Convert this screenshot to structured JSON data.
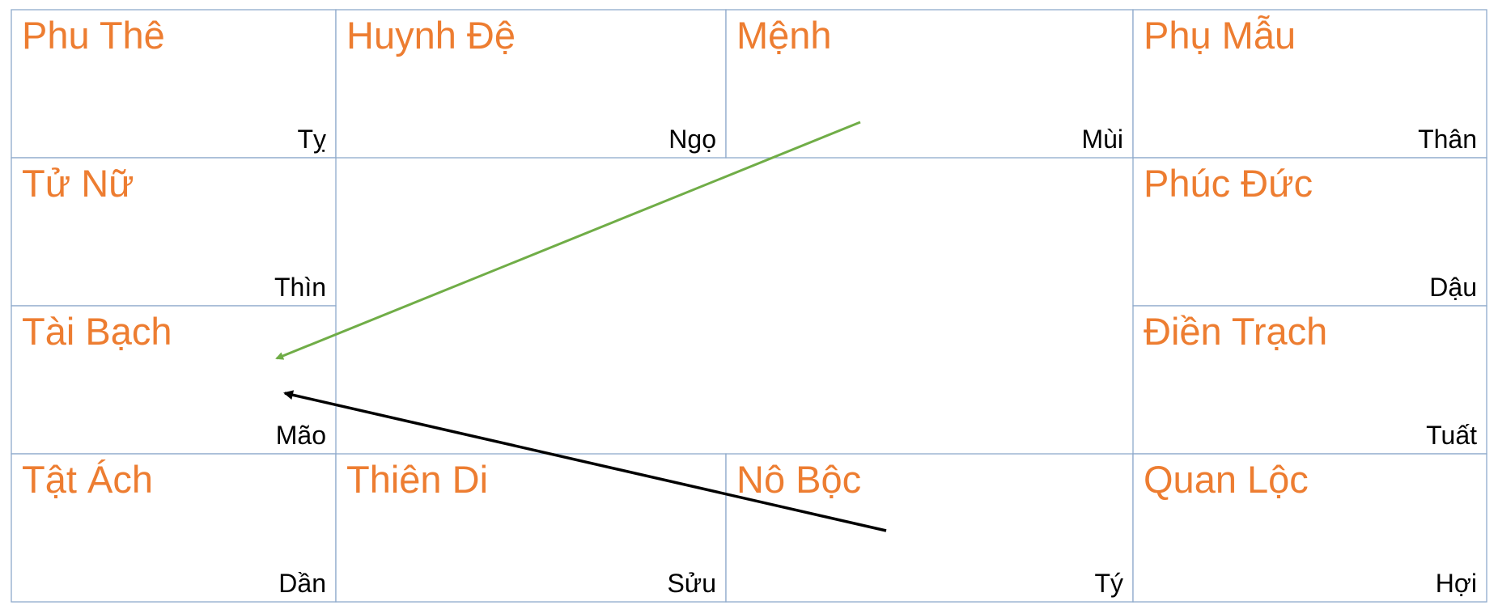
{
  "cells": [
    {
      "name": "Phu Thê",
      "branch": "Tỵ"
    },
    {
      "name": "Huynh Đệ",
      "branch": "Ngọ"
    },
    {
      "name": "Mệnh",
      "branch": "Mùi"
    },
    {
      "name": "Phụ Mẫu",
      "branch": "Thân"
    },
    {
      "name": "Tử Nữ",
      "branch": "Thìn"
    },
    {
      "name": "Phúc Đức",
      "branch": "Dậu"
    },
    {
      "name": "Tài Bạch",
      "branch": "Mão"
    },
    {
      "name": "Điền Trạch",
      "branch": "Tuất"
    },
    {
      "name": "Tật Ách",
      "branch": "Dần"
    },
    {
      "name": "Thiên Di",
      "branch": "Sửu"
    },
    {
      "name": "Nô Bộc",
      "branch": "Tý"
    },
    {
      "name": "Quan Lộc",
      "branch": "Hợi"
    }
  ]
}
